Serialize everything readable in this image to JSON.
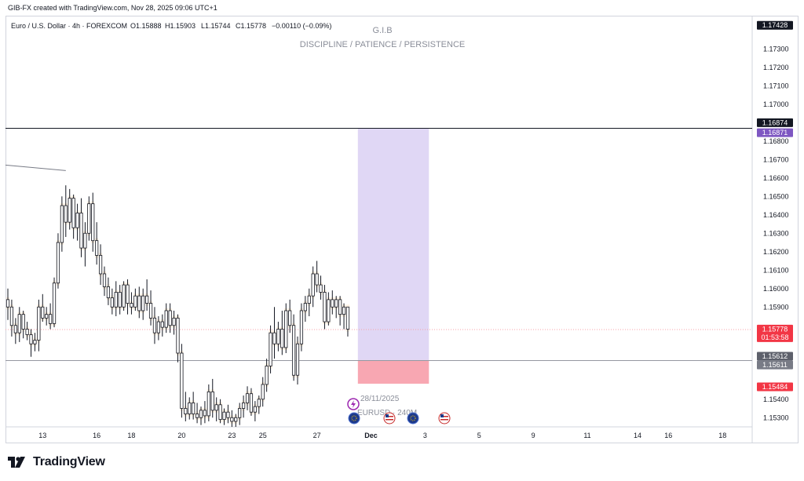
{
  "header": {
    "credit": "GIB-FX created with TradingView.com, Nov 28, 2025 09:06 UTC+1"
  },
  "legend": {
    "symbol": "Euro / U.S. Dollar · 4h · FOREXCOM",
    "open": "O1.15888",
    "high": "H1.15903",
    "low": "L1.15744",
    "close": "C1.15778",
    "change": "−0.00110 (−0.09%)"
  },
  "watermark": {
    "title": "G.I.B",
    "subtitle": "DISCIPLINE / PATIENCE / PERSISTENCE"
  },
  "colors": {
    "up": "#ffffff",
    "down": "#ffffff",
    "wick": "#131722",
    "long_target": "#e0d7f5",
    "long_stop": "#f8a7b2",
    "tag_dark": "#131722",
    "tag_purple": "#7e57c2",
    "tag_red": "#f23645",
    "tag_gray": "#787b86",
    "tag_mid": "#5d606b"
  },
  "price_tags": [
    {
      "label": "1.17428",
      "value": 1.17428,
      "color": "#131722"
    },
    {
      "label": "1.16874",
      "value": 1.16874,
      "color": "#131722"
    },
    {
      "label": "1.16871",
      "value": 1.16871,
      "color": "#7e57c2"
    },
    {
      "label": "1.15778",
      "value": 1.15778,
      "color": "#f23645",
      "sub": "01:53:58"
    },
    {
      "label": "1.15612",
      "value": 1.15612,
      "color": "#5d606b"
    },
    {
      "label": "1.15611",
      "value": 1.15611,
      "color": "#787b86"
    },
    {
      "label": "1.15484",
      "value": 1.15484,
      "color": "#f23645"
    }
  ],
  "event": {
    "date": "28/11/2025",
    "label": "EURUSD · 240M"
  },
  "footer": {
    "brand": "TradingView"
  },
  "chart_data": {
    "type": "candlestick",
    "title": "Euro / U.S. Dollar · 4h · FOREXCOM",
    "ylim": [
      1.1525,
      1.1748
    ],
    "y_ticks": [
      1.173,
      1.172,
      1.171,
      1.17,
      1.168,
      1.167,
      1.166,
      1.165,
      1.164,
      1.163,
      1.162,
      1.161,
      1.16,
      1.159,
      1.154,
      1.153
    ],
    "y_tick_labels": [
      "1.17300",
      "1.17200",
      "1.17100",
      "1.17000",
      "1.16800",
      "1.16700",
      "1.16600",
      "1.16500",
      "1.16400",
      "1.16300",
      "1.16200",
      "1.16100",
      "1.16000",
      "1.15900",
      "1.15400",
      "1.15300"
    ],
    "x_labels": [
      {
        "label": "13",
        "bar": 9
      },
      {
        "label": "16",
        "bar": 23
      },
      {
        "label": "18",
        "bar": 32
      },
      {
        "label": "20",
        "bar": 45
      },
      {
        "label": "23",
        "bar": 58
      },
      {
        "label": "25",
        "bar": 66
      },
      {
        "label": "27",
        "bar": 80
      },
      {
        "label": "Dec",
        "bar": 94
      },
      {
        "label": "3",
        "bar": 108
      },
      {
        "label": "5",
        "bar": 122
      },
      {
        "label": "9",
        "bar": 136
      },
      {
        "label": "11",
        "bar": 150
      },
      {
        "label": "14",
        "bar": 163
      },
      {
        "label": "16",
        "bar": 171
      },
      {
        "label": "18",
        "bar": 185
      }
    ],
    "candles": [
      [
        1.1594,
        1.16,
        1.1583,
        1.159
      ],
      [
        1.159,
        1.1594,
        1.1574,
        1.158
      ],
      [
        1.158,
        1.1584,
        1.157,
        1.1576
      ],
      [
        1.1576,
        1.159,
        1.1571,
        1.1586
      ],
      [
        1.1586,
        1.1588,
        1.1573,
        1.1578
      ],
      [
        1.1578,
        1.1582,
        1.1572,
        1.1575
      ],
      [
        1.1575,
        1.1578,
        1.1563,
        1.157
      ],
      [
        1.157,
        1.1576,
        1.1566,
        1.1572
      ],
      [
        1.1572,
        1.1594,
        1.1566,
        1.159
      ],
      [
        1.159,
        1.1597,
        1.1582,
        1.1584
      ],
      [
        1.1584,
        1.159,
        1.158,
        1.1586
      ],
      [
        1.1586,
        1.1592,
        1.1578,
        1.1581
      ],
      [
        1.1581,
        1.1606,
        1.1579,
        1.1603
      ],
      [
        1.1603,
        1.163,
        1.16,
        1.1625
      ],
      [
        1.1625,
        1.165,
        1.162,
        1.1645
      ],
      [
        1.1645,
        1.1656,
        1.1628,
        1.1636
      ],
      [
        1.1636,
        1.1654,
        1.1632,
        1.1649
      ],
      [
        1.1649,
        1.1651,
        1.1627,
        1.1633
      ],
      [
        1.1633,
        1.1646,
        1.1626,
        1.1641
      ],
      [
        1.1641,
        1.1649,
        1.1617,
        1.1622
      ],
      [
        1.1622,
        1.1636,
        1.1612,
        1.163
      ],
      [
        1.163,
        1.165,
        1.1626,
        1.1646
      ],
      [
        1.1646,
        1.1652,
        1.162,
        1.1626
      ],
      [
        1.1626,
        1.1636,
        1.1613,
        1.1618
      ],
      [
        1.1618,
        1.1624,
        1.1602,
        1.1608
      ],
      [
        1.1608,
        1.1612,
        1.1596,
        1.1601
      ],
      [
        1.1601,
        1.1606,
        1.1591,
        1.1595
      ],
      [
        1.1595,
        1.16,
        1.1586,
        1.159
      ],
      [
        1.159,
        1.1604,
        1.1585,
        1.1598
      ],
      [
        1.1598,
        1.1602,
        1.1586,
        1.159
      ],
      [
        1.159,
        1.1604,
        1.1588,
        1.1602
      ],
      [
        1.1602,
        1.1605,
        1.1586,
        1.1592
      ],
      [
        1.1592,
        1.1598,
        1.1586,
        1.159
      ],
      [
        1.159,
        1.16,
        1.1588,
        1.1596
      ],
      [
        1.1596,
        1.1601,
        1.1584,
        1.1588
      ],
      [
        1.1588,
        1.16,
        1.1583,
        1.1596
      ],
      [
        1.1596,
        1.1605,
        1.1588,
        1.1592
      ],
      [
        1.1592,
        1.1599,
        1.158,
        1.1584
      ],
      [
        1.1584,
        1.159,
        1.157,
        1.1576
      ],
      [
        1.1576,
        1.1585,
        1.1572,
        1.1582
      ],
      [
        1.1582,
        1.1586,
        1.1574,
        1.1579
      ],
      [
        1.1579,
        1.1592,
        1.1576,
        1.1588
      ],
      [
        1.1588,
        1.1592,
        1.1576,
        1.158
      ],
      [
        1.158,
        1.1588,
        1.1575,
        1.1584
      ],
      [
        1.1584,
        1.1586,
        1.156,
        1.1565
      ],
      [
        1.1565,
        1.157,
        1.153,
        1.1535
      ],
      [
        1.1535,
        1.1544,
        1.1528,
        1.1532
      ],
      [
        1.1532,
        1.1541,
        1.1529,
        1.1538
      ],
      [
        1.1538,
        1.1544,
        1.1529,
        1.1532
      ],
      [
        1.1532,
        1.1538,
        1.1527,
        1.153
      ],
      [
        1.153,
        1.1536,
        1.1526,
        1.1534
      ],
      [
        1.1534,
        1.1539,
        1.1527,
        1.1531
      ],
      [
        1.1531,
        1.1548,
        1.1528,
        1.1544
      ],
      [
        1.1544,
        1.1551,
        1.153,
        1.1534
      ],
      [
        1.1534,
        1.1541,
        1.1528,
        1.1537
      ],
      [
        1.1537,
        1.154,
        1.1527,
        1.1529
      ],
      [
        1.1529,
        1.1535,
        1.1526,
        1.1533
      ],
      [
        1.1533,
        1.1537,
        1.1527,
        1.153
      ],
      [
        1.153,
        1.1534,
        1.1524,
        1.1528
      ],
      [
        1.1528,
        1.1532,
        1.1525,
        1.153
      ],
      [
        1.153,
        1.1538,
        1.1526,
        1.1535
      ],
      [
        1.1535,
        1.1542,
        1.153,
        1.1538
      ],
      [
        1.1538,
        1.1547,
        1.1534,
        1.1543
      ],
      [
        1.1543,
        1.1546,
        1.1531,
        1.1533
      ],
      [
        1.1533,
        1.1539,
        1.1528,
        1.1536
      ],
      [
        1.1536,
        1.1542,
        1.1532,
        1.154
      ],
      [
        1.154,
        1.1552,
        1.1536,
        1.1548
      ],
      [
        1.1548,
        1.1562,
        1.1544,
        1.1558
      ],
      [
        1.1558,
        1.158,
        1.1554,
        1.1576
      ],
      [
        1.1576,
        1.159,
        1.1562,
        1.157
      ],
      [
        1.157,
        1.1582,
        1.1566,
        1.1578
      ],
      [
        1.1578,
        1.1588,
        1.1564,
        1.1568
      ],
      [
        1.1568,
        1.1592,
        1.1565,
        1.1588
      ],
      [
        1.1588,
        1.1594,
        1.1576,
        1.158
      ],
      [
        1.158,
        1.1586,
        1.155,
        1.1553
      ],
      [
        1.1553,
        1.1574,
        1.1548,
        1.157
      ],
      [
        1.157,
        1.1592,
        1.1566,
        1.1588
      ],
      [
        1.1588,
        1.1596,
        1.1582,
        1.1592
      ],
      [
        1.1592,
        1.16,
        1.1585,
        1.1596
      ],
      [
        1.1596,
        1.1612,
        1.159,
        1.1608
      ],
      [
        1.1608,
        1.1615,
        1.1598,
        1.1602
      ],
      [
        1.1602,
        1.1607,
        1.1594,
        1.1598
      ],
      [
        1.1598,
        1.1602,
        1.1578,
        1.1582
      ],
      [
        1.1582,
        1.1598,
        1.158,
        1.1594
      ],
      [
        1.1594,
        1.1599,
        1.1586,
        1.159
      ],
      [
        1.159,
        1.1596,
        1.1584,
        1.1594
      ],
      [
        1.1594,
        1.1596,
        1.158,
        1.1586
      ],
      [
        1.1586,
        1.1592,
        1.1578,
        1.159
      ],
      [
        1.159,
        1.159,
        1.1574,
        1.1578
      ]
    ],
    "levels": [
      {
        "name": "resistance",
        "value": 1.16871
      },
      {
        "name": "support",
        "value": 1.15612
      }
    ],
    "position": {
      "entry": 1.15612,
      "target": 1.16871,
      "stop": 1.15484
    }
  }
}
